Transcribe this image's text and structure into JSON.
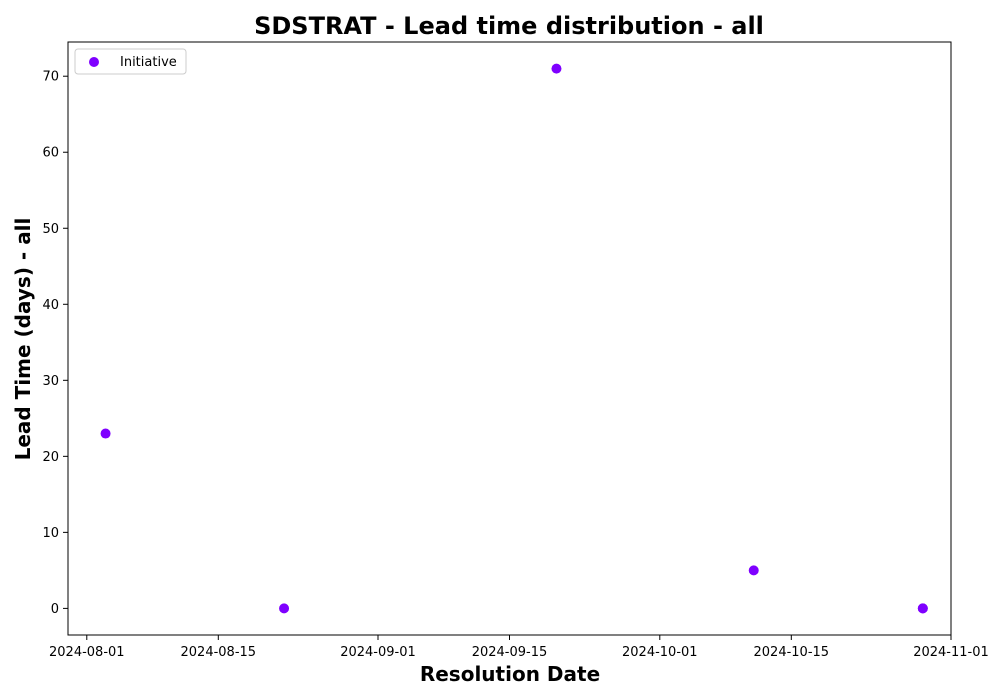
{
  "chart_data": {
    "type": "scatter",
    "title": "SDSTRAT - Lead time distribution - all",
    "xlabel": "Resolution Date",
    "ylabel": "Lead Time (days) - all",
    "x_type": "date",
    "xlim": [
      "2024-07-30",
      "2024-11-01"
    ],
    "ylim": [
      -3.5,
      74.5
    ],
    "x_ticks": [
      "2024-08-01",
      "2024-08-15",
      "2024-09-01",
      "2024-09-15",
      "2024-10-01",
      "2024-10-15",
      "2024-11-01"
    ],
    "y_ticks": [
      0,
      10,
      20,
      30,
      40,
      50,
      60,
      70
    ],
    "grid": false,
    "legend_position": "top-left",
    "series": [
      {
        "name": "Initiative",
        "color": "#7f00ff",
        "points": [
          {
            "x": "2024-08-03",
            "y": 23
          },
          {
            "x": "2024-08-22",
            "y": 0
          },
          {
            "x": "2024-09-20",
            "y": 71
          },
          {
            "x": "2024-10-11",
            "y": 5
          },
          {
            "x": "2024-10-29",
            "y": 0
          },
          {
            "x": "2024-10-29",
            "y": 0
          }
        ]
      }
    ]
  }
}
